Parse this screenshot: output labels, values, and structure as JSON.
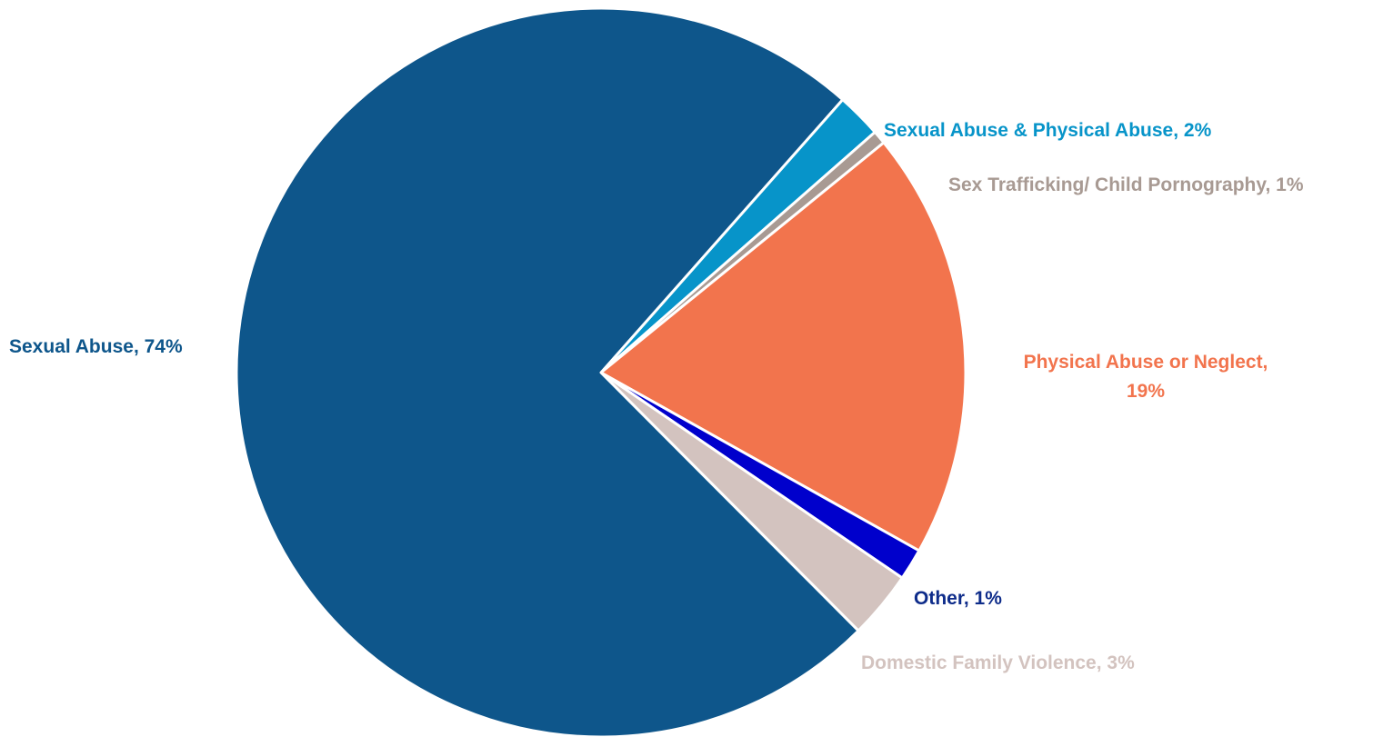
{
  "chart_data": {
    "type": "pie",
    "title": "",
    "start_angle_deg": -48.5,
    "direction": "clockwise",
    "legend": "none",
    "slices": [
      {
        "label": "Sexual Abuse & Physical Abuse",
        "value": 2,
        "display": "Sexual Abuse & Physical Abuse, 2%",
        "color": "#0794C9",
        "label_color": "#0794C9"
      },
      {
        "label": "Sex Trafficking/ Child Pornography",
        "value": 0.6,
        "display": "Sex Trafficking/ Child Pornography, 1%",
        "color": "#A89A93",
        "label_color": "#A89A93"
      },
      {
        "label": "Physical Abuse or Neglect",
        "value": 19,
        "display": "Physical Abuse or Neglect, 19%",
        "color": "#F2744D",
        "label_color": "#F2744D"
      },
      {
        "label": "Other",
        "value": 1.4,
        "display": "Other, 1%",
        "color": "#0000CC",
        "label_color": "#0E2C8A"
      },
      {
        "label": "Domestic Family Violence",
        "value": 3,
        "display": "Domestic Family Violence, 3%",
        "color": "#D3C3BF",
        "label_color": "#D3C3BF"
      },
      {
        "label": "Sexual Abuse",
        "value": 74,
        "display": "Sexual Abuse, 74%",
        "color": "#0E568B",
        "label_color": "#0E568B"
      }
    ]
  }
}
